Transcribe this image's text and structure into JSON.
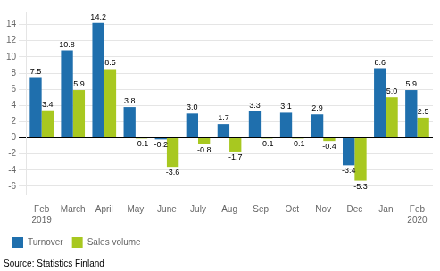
{
  "chart_data": {
    "type": "bar",
    "categories": [
      "Feb\n2019",
      "March",
      "April",
      "May",
      "June",
      "July",
      "Aug",
      "Sep",
      "Oct",
      "Nov",
      "Dec",
      "Jan",
      "Feb\n2020"
    ],
    "series": [
      {
        "name": "Turnover",
        "color": "#1f6fad",
        "values": [
          7.5,
          10.8,
          14.2,
          3.8,
          -0.2,
          3.0,
          1.7,
          3.3,
          3.1,
          2.9,
          -3.4,
          8.6,
          5.9
        ],
        "value_labels": [
          "7.5",
          "10.8",
          "14.2",
          "3.8",
          "-0.2",
          "3.0",
          "1.7",
          "3.3",
          "3.1",
          "2.9",
          "-3.4",
          "8.6",
          "5.9"
        ]
      },
      {
        "name": "Sales volume",
        "color": "#a8c820",
        "values": [
          3.4,
          5.9,
          8.5,
          -0.1,
          -3.6,
          -0.8,
          -1.7,
          -0.1,
          -0.1,
          -0.4,
          -5.3,
          5.0,
          2.5
        ],
        "value_labels": [
          "3.4",
          "5.9",
          "8.5",
          "-0.1",
          "-3.6",
          "-0.8",
          "-1.7",
          "-0.1",
          "-0.1",
          "-0.4",
          "-5.3",
          "5.0",
          "2.5"
        ]
      }
    ],
    "ylim": [
      -7,
      15.5
    ],
    "yticks": [
      -6,
      -4,
      -2,
      0,
      2,
      4,
      6,
      8,
      10,
      12,
      14
    ],
    "grid": true,
    "legend": "lower left",
    "data_labels": true,
    "annotations": [
      "Source: Statistics Finland"
    ]
  }
}
